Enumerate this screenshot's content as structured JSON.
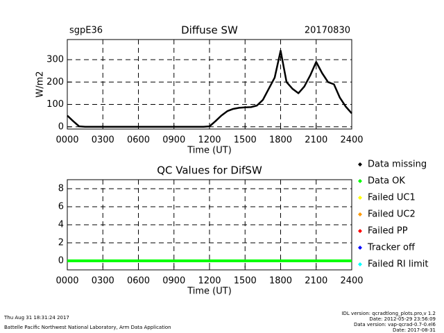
{
  "chart_data": [
    {
      "type": "line",
      "site": "sgpE36",
      "title": "Diffuse SW",
      "date": "20170830",
      "x_label": "Time (UT)",
      "y_label": "W/m2",
      "color": "#000000",
      "grid": true,
      "x": [
        0,
        50,
        100,
        150,
        200,
        250,
        300,
        350,
        400,
        450,
        500,
        550,
        600,
        650,
        700,
        750,
        800,
        850,
        900,
        950,
        1000,
        1050,
        1100,
        1150,
        1200,
        1250,
        1300,
        1350,
        1400,
        1450,
        1500,
        1550,
        1600,
        1650,
        1700,
        1750,
        1800,
        1850,
        1900,
        1950,
        2000,
        2050,
        2100,
        2150,
        2200,
        2250,
        2300,
        2350,
        2400
      ],
      "values": [
        50,
        25,
        2,
        0,
        0,
        0,
        0,
        0,
        0,
        0,
        0,
        0,
        0,
        0,
        0,
        0,
        0,
        0,
        0,
        0,
        0,
        0,
        0,
        0,
        2,
        25,
        50,
        70,
        80,
        85,
        87,
        88,
        95,
        120,
        170,
        220,
        340,
        200,
        170,
        150,
        180,
        230,
        290,
        240,
        200,
        190,
        130,
        90,
        60
      ],
      "xlim": [
        0,
        2400
      ],
      "xticks": [
        {
          "value": 0,
          "label": "0000"
        },
        {
          "value": 300,
          "label": "0300"
        },
        {
          "value": 600,
          "label": "0600"
        },
        {
          "value": 900,
          "label": "0900"
        },
        {
          "value": 1200,
          "label": "1200"
        },
        {
          "value": 1500,
          "label": "1500"
        },
        {
          "value": 1800,
          "label": "1800"
        },
        {
          "value": 2100,
          "label": "2100"
        },
        {
          "value": 2400,
          "label": "2400"
        }
      ],
      "ylim": [
        -10,
        390
      ],
      "yticks": [
        0,
        100,
        200,
        300
      ]
    },
    {
      "type": "line",
      "title": "QC Values for DifSW",
      "x_label": "Time (UT)",
      "color": "#00ff00",
      "grid": true,
      "x": [
        0,
        2400
      ],
      "values": [
        0,
        0
      ],
      "xlim": [
        0,
        2400
      ],
      "xticks": [
        {
          "value": 0,
          "label": "0000"
        },
        {
          "value": 300,
          "label": "0300"
        },
        {
          "value": 600,
          "label": "0600"
        },
        {
          "value": 900,
          "label": "0900"
        },
        {
          "value": 1200,
          "label": "1200"
        },
        {
          "value": 1500,
          "label": "1500"
        },
        {
          "value": 1800,
          "label": "1800"
        },
        {
          "value": 2100,
          "label": "2100"
        },
        {
          "value": 2400,
          "label": "2400"
        }
      ],
      "ylim": [
        -1,
        9
      ],
      "yticks": [
        0,
        2,
        4,
        6,
        8
      ],
      "legend": [
        {
          "name": "Data missing",
          "color": "#000000"
        },
        {
          "name": "Data OK",
          "color": "#00ff00"
        },
        {
          "name": "Failed UC1",
          "color": "#ffff00"
        },
        {
          "name": "Failed UC2",
          "color": "#ff9900"
        },
        {
          "name": "Failed PP",
          "color": "#ff0000"
        },
        {
          "name": "Tracker off",
          "color": "#0000ff"
        },
        {
          "name": "Failed RI limit",
          "color": "#00ffff"
        }
      ]
    }
  ],
  "footer": {
    "timestamp": "Thu Aug 31 18:31:24 2017",
    "credit": "Battelle Pacific Northwest National Laboratory, Arm Data Application",
    "info": [
      "IDL version: qcradtlong_plots.pro,v 1.2",
      "Date: 2012-05-29 23:56:09",
      "Data version: vap-qcrad-0.7-0.el6",
      "Date: 2017-08-31"
    ]
  }
}
